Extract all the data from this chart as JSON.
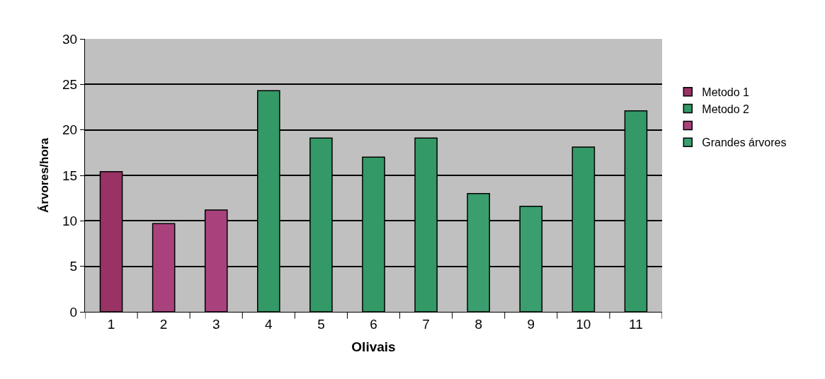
{
  "chart_data": {
    "type": "bar",
    "xlabel": "Olivais",
    "ylabel": "Árvores/hora",
    "categories": [
      "1",
      "2",
      "3",
      "4",
      "5",
      "6",
      "7",
      "8",
      "9",
      "10",
      "11"
    ],
    "series": [
      {
        "name": "Metodo 1",
        "color": "#993366",
        "values": [
          15.4,
          null,
          null,
          null,
          null,
          null,
          null,
          null,
          null,
          null,
          null
        ]
      },
      {
        "name": "Metodo 2",
        "color": "#339966",
        "values": [
          null,
          null,
          null,
          24.3,
          19.1,
          17,
          19.1,
          null,
          null,
          18.1,
          22.1
        ]
      },
      {
        "color": "#a9427c",
        "values": [
          null,
          9.7,
          11.2,
          null,
          null,
          null,
          null,
          null,
          null,
          null,
          null
        ]
      },
      {
        "name": "Grandes árvores",
        "color": "#3a9e6e",
        "values": [
          null,
          null,
          null,
          null,
          null,
          null,
          null,
          13,
          11.6,
          null,
          null
        ]
      }
    ],
    "ylim": [
      0,
      30
    ],
    "yticks": [
      0,
      5,
      10,
      15,
      20,
      25,
      30
    ],
    "grid": "y",
    "legend": "right"
  }
}
